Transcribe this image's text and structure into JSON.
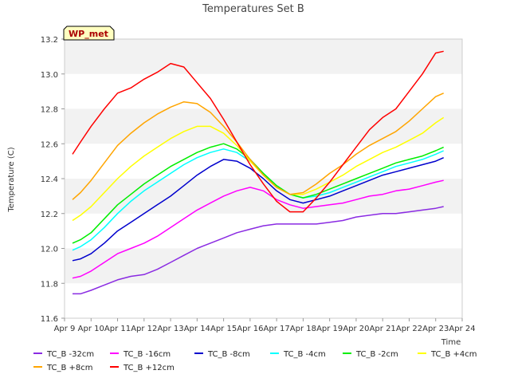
{
  "chart_data": {
    "type": "line",
    "title": "Temperatures Set B",
    "xlabel": "Time",
    "ylabel": "Temperature (C)",
    "badge": "WP_met",
    "xlim": [
      0,
      15
    ],
    "ylim": [
      11.6,
      13.2
    ],
    "x_ticks": [
      0,
      1,
      2,
      3,
      4,
      5,
      6,
      7,
      8,
      9,
      10,
      11,
      12,
      13,
      14,
      15
    ],
    "x_tick_labels": [
      "Apr 9",
      "Apr 10",
      "Apr 11",
      "Apr 12",
      "Apr 13",
      "Apr 14",
      "Apr 15",
      "Apr 16",
      "Apr 17",
      "Apr 18",
      "Apr 19",
      "Apr 20",
      "Apr 21",
      "Apr 22",
      "Apr 23",
      "Apr 24"
    ],
    "y_ticks": [
      11.6,
      11.8,
      12.0,
      12.2,
      12.4,
      12.6,
      12.8,
      13.0,
      13.2
    ],
    "y_tick_labels": [
      "11.6",
      "11.8",
      "12.0",
      "12.2",
      "12.4",
      "12.6",
      "12.8",
      "13.0",
      "13.2"
    ],
    "grid": "horizontal bands",
    "legend_position": "bottom",
    "x": [
      0.3,
      0.6,
      1.0,
      1.5,
      2.0,
      2.5,
      3.0,
      3.5,
      4.0,
      4.5,
      5.0,
      5.5,
      6.0,
      6.5,
      7.0,
      7.5,
      8.0,
      8.5,
      9.0,
      9.5,
      10.0,
      10.5,
      11.0,
      11.5,
      12.0,
      12.5,
      13.0,
      13.5,
      14.0,
      14.3
    ],
    "series": [
      {
        "name": "TC_B -32cm",
        "color": "#8a2be2",
        "values": [
          11.74,
          11.74,
          11.76,
          11.79,
          11.82,
          11.84,
          11.85,
          11.88,
          11.92,
          11.96,
          12.0,
          12.03,
          12.06,
          12.09,
          12.11,
          12.13,
          12.14,
          12.14,
          12.14,
          12.14,
          12.15,
          12.16,
          12.18,
          12.19,
          12.2,
          12.2,
          12.21,
          12.22,
          12.23,
          12.24
        ]
      },
      {
        "name": "TC_B -16cm",
        "color": "#ff00ff",
        "values": [
          11.83,
          11.84,
          11.87,
          11.92,
          11.97,
          12.0,
          12.03,
          12.07,
          12.12,
          12.17,
          12.22,
          12.26,
          12.3,
          12.33,
          12.35,
          12.33,
          12.28,
          12.25,
          12.23,
          12.24,
          12.25,
          12.26,
          12.28,
          12.3,
          12.31,
          12.33,
          12.34,
          12.36,
          12.38,
          12.39
        ]
      },
      {
        "name": "TC_B -8cm",
        "color": "#0000cd",
        "values": [
          11.93,
          11.94,
          11.97,
          12.03,
          12.1,
          12.15,
          12.2,
          12.25,
          12.3,
          12.36,
          12.42,
          12.47,
          12.51,
          12.5,
          12.46,
          12.4,
          12.33,
          12.28,
          12.26,
          12.28,
          12.3,
          12.33,
          12.36,
          12.39,
          12.42,
          12.44,
          12.46,
          12.48,
          12.5,
          12.52
        ]
      },
      {
        "name": "TC_B -4cm",
        "color": "#00ffff",
        "values": [
          11.99,
          12.01,
          12.05,
          12.12,
          12.2,
          12.27,
          12.33,
          12.38,
          12.43,
          12.48,
          12.52,
          12.55,
          12.57,
          12.55,
          12.5,
          12.43,
          12.36,
          12.31,
          12.29,
          12.3,
          12.32,
          12.35,
          12.38,
          12.41,
          12.44,
          12.47,
          12.49,
          12.51,
          12.54,
          12.56
        ]
      },
      {
        "name": "TC_B -2cm",
        "color": "#00ee00",
        "values": [
          12.03,
          12.05,
          12.09,
          12.17,
          12.25,
          12.31,
          12.37,
          12.42,
          12.47,
          12.51,
          12.55,
          12.58,
          12.6,
          12.57,
          12.51,
          12.43,
          12.36,
          12.31,
          12.29,
          12.31,
          12.34,
          12.37,
          12.4,
          12.43,
          12.46,
          12.49,
          12.51,
          12.53,
          12.56,
          12.58
        ]
      },
      {
        "name": "TC_B +4cm",
        "color": "#ffff00",
        "values": [
          12.16,
          12.19,
          12.24,
          12.32,
          12.4,
          12.47,
          12.53,
          12.58,
          12.63,
          12.67,
          12.7,
          12.7,
          12.66,
          12.59,
          12.5,
          12.42,
          12.35,
          12.31,
          12.31,
          12.34,
          12.38,
          12.42,
          12.47,
          12.51,
          12.55,
          12.58,
          12.62,
          12.66,
          12.72,
          12.75
        ]
      },
      {
        "name": "TC_B +8cm",
        "color": "#ffa500",
        "values": [
          12.28,
          12.32,
          12.39,
          12.49,
          12.59,
          12.66,
          12.72,
          12.77,
          12.81,
          12.84,
          12.83,
          12.78,
          12.7,
          12.61,
          12.51,
          12.42,
          12.35,
          12.31,
          12.32,
          12.37,
          12.43,
          12.48,
          12.54,
          12.59,
          12.63,
          12.67,
          12.73,
          12.8,
          12.87,
          12.89
        ]
      },
      {
        "name": "TC_B +12cm",
        "color": "#ff0000",
        "values": [
          12.54,
          12.61,
          12.7,
          12.8,
          12.89,
          12.92,
          12.97,
          13.01,
          13.06,
          13.04,
          12.95,
          12.86,
          12.74,
          12.61,
          12.48,
          12.37,
          12.27,
          12.21,
          12.21,
          12.29,
          12.38,
          12.48,
          12.58,
          12.68,
          12.75,
          12.8,
          12.9,
          13.0,
          13.12,
          13.13
        ]
      }
    ]
  }
}
